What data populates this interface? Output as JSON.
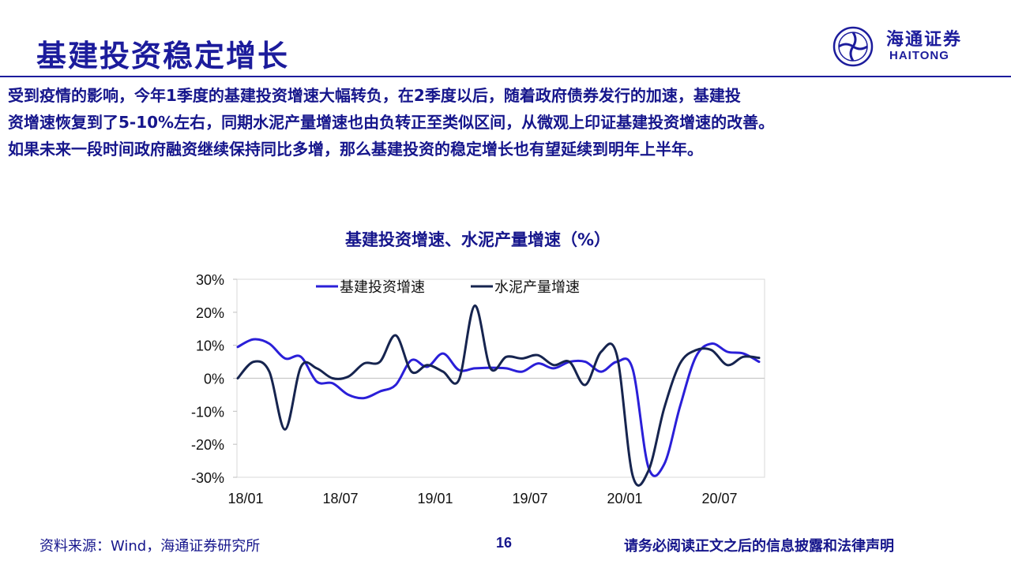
{
  "slide": {
    "title": "基建投资稳定增长",
    "body_lines": [
      "受到疫情的影响，今年1季度的基建投资增速大幅转负，在2季度以后，随着政府债券发行的加速，基建投",
      "资增速恢复到了5-10%左右，同期水泥产量增速也由负转正至类似区间，从微观上印证基建投资增速的改善。",
      "如果未来一段时间政府融资继续保持同比多增，那么基建投资的稳定增长也有望延续到明年上半年。"
    ]
  },
  "logo": {
    "name_cn": "海通证券",
    "name_en": "HAITONG",
    "mark": "haitong-logo-icon"
  },
  "footer": {
    "source": "资料来源：Wind，海通证券研究所",
    "page_number": "16",
    "disclaimer": "请务必阅读正文之后的信息披露和法律声明"
  },
  "colors": {
    "brand": "#1c1c9c",
    "series_infra": "#2a1fd8",
    "series_cement": "#16244f"
  },
  "chart_data": {
    "type": "line",
    "title": "基建投资增速、水泥产量增速（%）",
    "x": [
      "18/01",
      "18/02",
      "18/03",
      "18/04",
      "18/05",
      "18/06",
      "18/07",
      "18/08",
      "18/09",
      "18/10",
      "18/11",
      "18/12",
      "19/01",
      "19/02",
      "19/03",
      "19/04",
      "19/05",
      "19/06",
      "19/07",
      "19/08",
      "19/09",
      "19/10",
      "19/11",
      "19/12",
      "20/01",
      "20/02",
      "20/03",
      "20/04",
      "20/05",
      "20/06",
      "20/07",
      "20/08",
      "20/09",
      "20/10"
    ],
    "x_tick_labels": [
      "18/01",
      "18/07",
      "19/01",
      "19/07",
      "20/01",
      "20/07"
    ],
    "y_tick_labels": [
      "30%",
      "20%",
      "10%",
      "0%",
      "-10%",
      "-20%",
      "-30%"
    ],
    "ylim": [
      -30,
      30
    ],
    "legend_position": "top-left",
    "grid": false,
    "series": [
      {
        "name": "基建投资增速",
        "color": "#2a1fd8",
        "values": [
          9.5,
          11.8,
          10.5,
          6.0,
          6.5,
          -1.0,
          -1.5,
          -5.0,
          -6.0,
          -4.0,
          -2.0,
          5.5,
          3.5,
          7.5,
          2.5,
          3.0,
          3.2,
          3.0,
          2.0,
          4.5,
          3.0,
          5.0,
          5.0,
          2.0,
          5.0,
          2.8,
          -27.0,
          -26.0,
          -8.5,
          6.5,
          10.5,
          8.0,
          7.5,
          5.0
        ]
      },
      {
        "name": "水泥产量增速",
        "color": "#16244f",
        "values": [
          0.0,
          5.0,
          2.0,
          -15.5,
          3.5,
          3.0,
          0.0,
          0.5,
          4.5,
          5.0,
          13.0,
          2.0,
          4.0,
          2.0,
          -0.5,
          22.0,
          3.0,
          6.5,
          6.0,
          7.0,
          4.0,
          5.0,
          -2.0,
          8.0,
          7.0,
          -29.5,
          -28.0,
          -9.0,
          4.5,
          8.5,
          8.5,
          4.0,
          6.5,
          6.2
        ]
      }
    ]
  }
}
